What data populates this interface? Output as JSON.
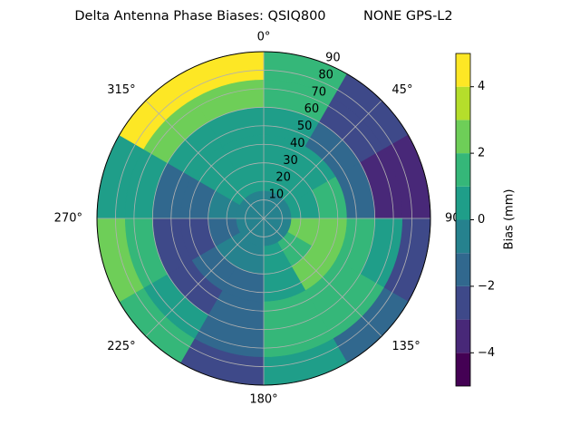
{
  "chart_data": {
    "type": "polar-contour",
    "title": "Delta Antenna Phase Biases: QSIQ800         NONE GPS-L2",
    "azimuth_edges": [
      0,
      30,
      60,
      90,
      120,
      150,
      180,
      210,
      240,
      270,
      300,
      330,
      360
    ],
    "zenith_edges": [
      0,
      15,
      30,
      45,
      60,
      75,
      90
    ],
    "values": [
      [
        -0.5,
        0.2,
        0.5,
        0.5,
        1.5,
        1.5
      ],
      [
        -0.5,
        0.5,
        1,
        -1,
        -2.5,
        -2.5
      ],
      [
        -0.5,
        1,
        1.5,
        -1.5,
        -3.5,
        -3
      ],
      [
        -0.3,
        2.5,
        2.5,
        1.5,
        0.5,
        -2.5
      ],
      [
        -0.5,
        1.5,
        2.5,
        2,
        1.5,
        -1.5
      ],
      [
        -0.5,
        0.5,
        1,
        2,
        1.5,
        0.5
      ],
      [
        -0.5,
        -0.5,
        -1,
        -1.5,
        -1,
        -2.5
      ],
      [
        -0.5,
        -0.5,
        -1.5,
        -2,
        0.5,
        1.5
      ],
      [
        -0.5,
        -1,
        -2,
        -2.5,
        1.5,
        2.5
      ],
      [
        -0.5,
        -0.5,
        -1.5,
        -1.5,
        0.5,
        0.5
      ],
      [
        -0.5,
        0.5,
        0.5,
        1,
        2.5,
        4.5
      ],
      [
        -0.5,
        0.5,
        0.5,
        1,
        2.5,
        4.5
      ]
    ],
    "rlim": [
      0,
      90
    ],
    "rticks": [
      10,
      20,
      30,
      40,
      50,
      60,
      70,
      80,
      90
    ],
    "thetaticks": [
      {
        "value": 0,
        "label": "0°"
      },
      {
        "value": 45,
        "label": "45°"
      },
      90,
      {
        "value": 135,
        "label": "135°"
      },
      {
        "value": 180,
        "label": "180°"
      },
      {
        "value": 225,
        "label": "225°"
      },
      {
        "value": 270,
        "label": "270°"
      },
      {
        "value": 315,
        "label": "315°"
      }
    ],
    "levels": [
      -5,
      -4,
      -3,
      -2,
      -1,
      0,
      1,
      2,
      3,
      4,
      5
    ],
    "colors": [
      "#440154",
      "#482878",
      "#3e4989",
      "#31688e",
      "#26828e",
      "#1f9e89",
      "#35b779",
      "#6ece58",
      "#b5de2b",
      "#fde725"
    ],
    "colorbar_label": "Bias (mm)",
    "colorbar_ticks": [
      {
        "value": -4,
        "label": "−4"
      },
      {
        "value": -2,
        "label": "−2"
      },
      0,
      2,
      4
    ],
    "grid": true
  }
}
